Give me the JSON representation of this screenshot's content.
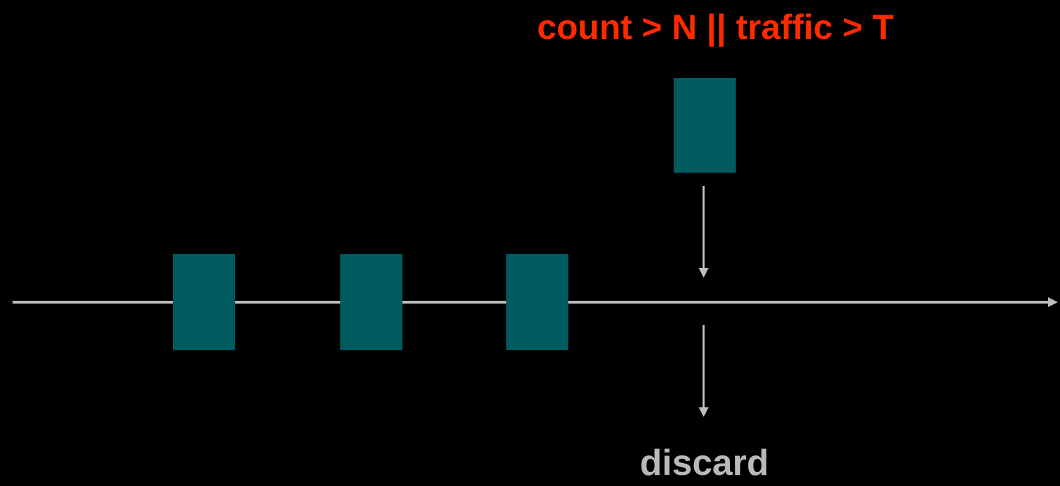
{
  "condition": "count > N || traffic > T",
  "outcome": "discard",
  "colors": {
    "background": "#000000",
    "packet": "#005b5e",
    "line": "#bdbdbd",
    "condition_text": "#ff2a00",
    "outcome_text": "#b9b9b9"
  },
  "queue_packets": 3,
  "arriving_packets": 1
}
